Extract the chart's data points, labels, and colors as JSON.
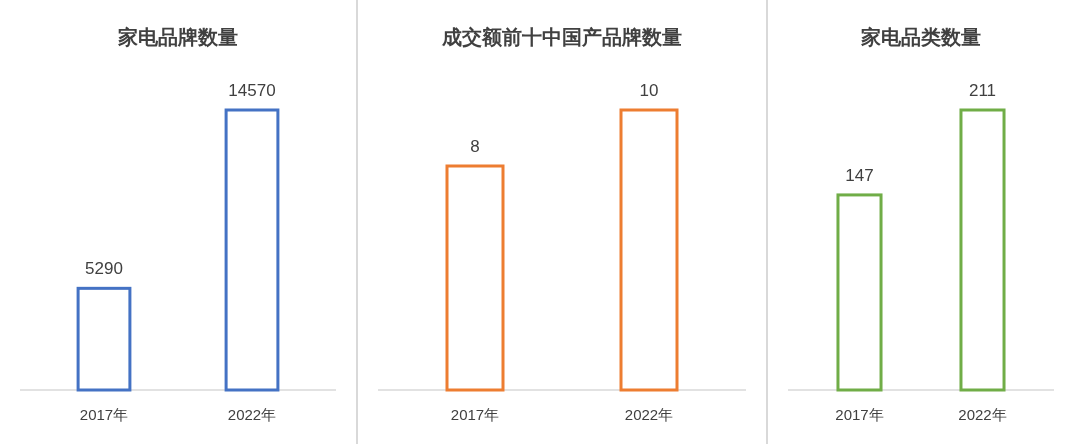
{
  "chart_data": [
    {
      "type": "bar",
      "title": "家电品牌数量",
      "categories": [
        "2017年",
        "2022年"
      ],
      "values": [
        5290,
        14570
      ],
      "color": "#4472c4",
      "data_labels": true
    },
    {
      "type": "bar",
      "title": "成交额前十中国产品牌数量",
      "categories": [
        "2017年",
        "2022年"
      ],
      "values": [
        8,
        10
      ],
      "color": "#ed7d31",
      "data_labels": true
    },
    {
      "type": "bar",
      "title": "家电品类数量",
      "categories": [
        "2017年",
        "2022年"
      ],
      "values": [
        147,
        211
      ],
      "color": "#70ad47",
      "data_labels": true
    }
  ]
}
